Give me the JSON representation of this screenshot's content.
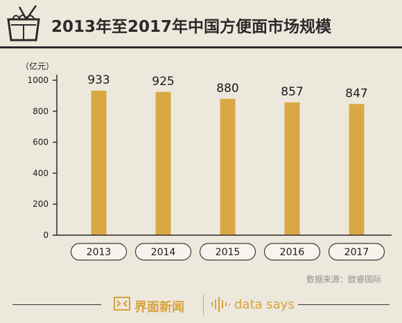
{
  "header": {
    "title": "2013年至2017年中国方便面市场规模"
  },
  "chart_data": {
    "type": "bar",
    "title": "2013年至2017年中国方便面市场规模",
    "ylabel": "（亿元）",
    "xlabel": "",
    "categories": [
      "2013",
      "2014",
      "2015",
      "2016",
      "2017"
    ],
    "values": [
      933,
      925,
      880,
      857,
      847
    ],
    "value_labels": [
      "933",
      "925",
      "880",
      "857",
      "847"
    ],
    "ylim": [
      0,
      1000
    ],
    "yticks": [
      "0",
      "200",
      "400",
      "600",
      "800",
      "1000"
    ],
    "grid": false,
    "colors": {
      "bar": "#d9a845",
      "axis": "#2a2a2a",
      "text": "#1a1a1a"
    }
  },
  "source": "数据来源：欧睿国际",
  "footer": {
    "brand_cn": "界面新闻",
    "brand_en": "data says",
    "accent": "#d6a23d"
  }
}
